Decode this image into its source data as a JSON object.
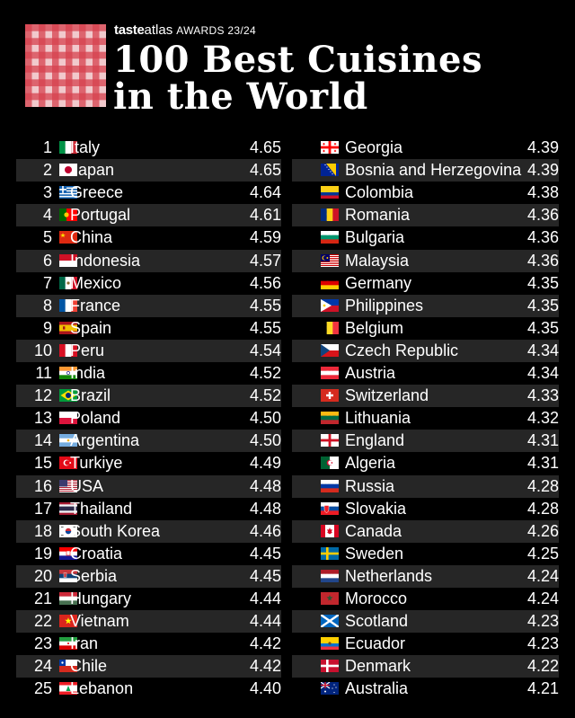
{
  "header": {
    "brand_taste": "taste",
    "brand_atlas": "atlas",
    "brand_awards": "AWARDS 23/24",
    "title_line1": "100 Best Cuisines",
    "title_line2": "in the World"
  },
  "left": [
    {
      "rank": "1",
      "name": "Italy",
      "score": "4.65",
      "flag": "italy-flag-icon"
    },
    {
      "rank": "2",
      "name": "Japan",
      "score": "4.65",
      "flag": "japan-flag-icon"
    },
    {
      "rank": "3",
      "name": "Greece",
      "score": "4.64",
      "flag": "greece-flag-icon"
    },
    {
      "rank": "4",
      "name": "Portugal",
      "score": "4.61",
      "flag": "portugal-flag-icon"
    },
    {
      "rank": "5",
      "name": "China",
      "score": "4.59",
      "flag": "china-flag-icon"
    },
    {
      "rank": "6",
      "name": "Indonesia",
      "score": "4.57",
      "flag": "indonesia-flag-icon"
    },
    {
      "rank": "7",
      "name": "Mexico",
      "score": "4.56",
      "flag": "mexico-flag-icon"
    },
    {
      "rank": "8",
      "name": "France",
      "score": "4.55",
      "flag": "france-flag-icon"
    },
    {
      "rank": "9",
      "name": "Spain",
      "score": "4.55",
      "flag": "spain-flag-icon"
    },
    {
      "rank": "10",
      "name": "Peru",
      "score": "4.54",
      "flag": "peru-flag-icon"
    },
    {
      "rank": "11",
      "name": "India",
      "score": "4.52",
      "flag": "india-flag-icon"
    },
    {
      "rank": "12",
      "name": "Brazil",
      "score": "4.52",
      "flag": "brazil-flag-icon"
    },
    {
      "rank": "13",
      "name": "Poland",
      "score": "4.50",
      "flag": "poland-flag-icon"
    },
    {
      "rank": "14",
      "name": "Argentina",
      "score": "4.50",
      "flag": "argentina-flag-icon"
    },
    {
      "rank": "15",
      "name": "Turkiye",
      "score": "4.49",
      "flag": "turkiye-flag-icon"
    },
    {
      "rank": "16",
      "name": "USA",
      "score": "4.48",
      "flag": "usa-flag-icon"
    },
    {
      "rank": "17",
      "name": "Thailand",
      "score": "4.48",
      "flag": "thailand-flag-icon"
    },
    {
      "rank": "18",
      "name": "South Korea",
      "score": "4.46",
      "flag": "south-korea-flag-icon"
    },
    {
      "rank": "19",
      "name": "Croatia",
      "score": "4.45",
      "flag": "croatia-flag-icon"
    },
    {
      "rank": "20",
      "name": "Serbia",
      "score": "4.45",
      "flag": "serbia-flag-icon"
    },
    {
      "rank": "21",
      "name": "Hungary",
      "score": "4.44",
      "flag": "hungary-flag-icon"
    },
    {
      "rank": "22",
      "name": "Vietnam",
      "score": "4.44",
      "flag": "vietnam-flag-icon"
    },
    {
      "rank": "23",
      "name": "Iran",
      "score": "4.42",
      "flag": "iran-flag-icon"
    },
    {
      "rank": "24",
      "name": "Chile",
      "score": "4.42",
      "flag": "chile-flag-icon"
    },
    {
      "rank": "25",
      "name": "Lebanon",
      "score": "4.40",
      "flag": "lebanon-flag-icon"
    }
  ],
  "right": [
    {
      "rank": "26",
      "name": "Georgia",
      "score": "4.39",
      "flag": "georgia-flag-icon"
    },
    {
      "rank": "27",
      "name": "Bosnia and Herzegovina",
      "score": "4.39",
      "flag": "bosnia-flag-icon"
    },
    {
      "rank": "28",
      "name": "Colombia",
      "score": "4.38",
      "flag": "colombia-flag-icon"
    },
    {
      "rank": "29",
      "name": "Romania",
      "score": "4.36",
      "flag": "romania-flag-icon"
    },
    {
      "rank": "30",
      "name": "Bulgaria",
      "score": "4.36",
      "flag": "bulgaria-flag-icon"
    },
    {
      "rank": "31",
      "name": "Malaysia",
      "score": "4.36",
      "flag": "malaysia-flag-icon"
    },
    {
      "rank": "32",
      "name": "Germany",
      "score": "4.35",
      "flag": "germany-flag-icon"
    },
    {
      "rank": "33",
      "name": "Philippines",
      "score": "4.35",
      "flag": "philippines-flag-icon"
    },
    {
      "rank": "34",
      "name": "Belgium",
      "score": "4.35",
      "flag": "belgium-flag-icon"
    },
    {
      "rank": "35",
      "name": "Czech Republic",
      "score": "4.34",
      "flag": "czech-flag-icon"
    },
    {
      "rank": "36",
      "name": "Austria",
      "score": "4.34",
      "flag": "austria-flag-icon"
    },
    {
      "rank": "37",
      "name": "Switzerland",
      "score": "4.33",
      "flag": "switzerland-flag-icon"
    },
    {
      "rank": "38",
      "name": "Lithuania",
      "score": "4.32",
      "flag": "lithuania-flag-icon"
    },
    {
      "rank": "39",
      "name": "England",
      "score": "4.31",
      "flag": "england-flag-icon"
    },
    {
      "rank": "40",
      "name": "Algeria",
      "score": "4.31",
      "flag": "algeria-flag-icon"
    },
    {
      "rank": "41",
      "name": "Russia",
      "score": "4.28",
      "flag": "russia-flag-icon"
    },
    {
      "rank": "42",
      "name": "Slovakia",
      "score": "4.28",
      "flag": "slovakia-flag-icon"
    },
    {
      "rank": "43",
      "name": "Canada",
      "score": "4.26",
      "flag": "canada-flag-icon"
    },
    {
      "rank": "44",
      "name": "Sweden",
      "score": "4.25",
      "flag": "sweden-flag-icon"
    },
    {
      "rank": "45",
      "name": "Netherlands",
      "score": "4.24",
      "flag": "netherlands-flag-icon"
    },
    {
      "rank": "46",
      "name": "Morocco",
      "score": "4.24",
      "flag": "morocco-flag-icon"
    },
    {
      "rank": "47",
      "name": "Scotland",
      "score": "4.23",
      "flag": "scotland-flag-icon"
    },
    {
      "rank": "48",
      "name": "Ecuador",
      "score": "4.23",
      "flag": "ecuador-flag-icon"
    },
    {
      "rank": "49",
      "name": "Denmark",
      "score": "4.22",
      "flag": "denmark-flag-icon"
    },
    {
      "rank": "50",
      "name": "Australia",
      "score": "4.21",
      "flag": "australia-flag-icon"
    }
  ]
}
